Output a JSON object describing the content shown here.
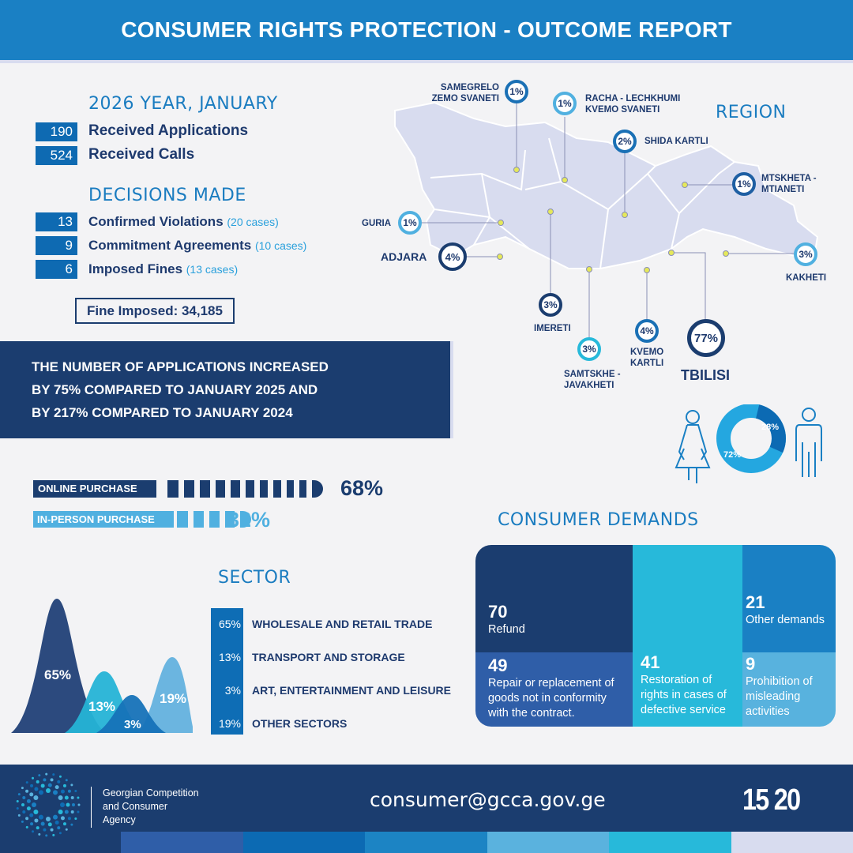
{
  "header": {
    "title": "CONSUMER RIGHTS PROTECTION - OUTCOME REPORT"
  },
  "period": {
    "title": "2026 YEAR, JANUARY",
    "stats": [
      {
        "value": "190",
        "label": "Received Applications"
      },
      {
        "value": "524",
        "label": "Received Calls"
      }
    ]
  },
  "decisions": {
    "title": "DECISIONS MADE",
    "items": [
      {
        "value": "13",
        "label": "Confirmed Violations",
        "note": "(20 cases)"
      },
      {
        "value": "9",
        "label": "Commitment Agreements",
        "note": "(10 cases)"
      },
      {
        "value": "6",
        "label": "Imposed Fines",
        "note": "(13  cases)"
      }
    ],
    "fine": "Fine Imposed: 34,185"
  },
  "banner": {
    "lines": [
      "THE NUMBER OF APPLICATIONS INCREASED",
      "BY 75% COMPARED TO JANUARY 2025 AND",
      "BY 217% COMPARED TO JANUARY 2024"
    ]
  },
  "region": {
    "title": "REGION",
    "items": [
      {
        "name": "SAMEGRELO ZEMO SVANETI",
        "value": "1%"
      },
      {
        "name": "RACHA - LECHKHUMI KVEMO SVANETI",
        "value": "1%"
      },
      {
        "name": "SHIDA KARTLI",
        "value": "2%"
      },
      {
        "name": "MTSKHETA - MTIANETI",
        "value": "1%"
      },
      {
        "name": "GURIA",
        "value": "1%"
      },
      {
        "name": "ADJARA",
        "value": "4%"
      },
      {
        "name": "KAKHETI",
        "value": "3%"
      },
      {
        "name": "IMERETI",
        "value": "3%"
      },
      {
        "name": "SAMTSKHE - JAVAKHETI",
        "value": "3%"
      },
      {
        "name": "KVEMO KARTLI",
        "value": "4%"
      },
      {
        "name": "TBILISI",
        "value": "77%"
      }
    ]
  },
  "gender": {
    "female": "72%",
    "male": "28%",
    "female_value": 72,
    "male_value": 28
  },
  "purchase": [
    {
      "label": "ONLINE PURCHASE",
      "value": "68%",
      "percent": 68
    },
    {
      "label": "IN-PERSON PURCHASE",
      "value": "32%",
      "percent": 32
    }
  ],
  "sector": {
    "title": "SECTOR",
    "items": [
      {
        "value": "65%",
        "label": "WHOLESALE AND RETAIL TRADE",
        "percent": 65
      },
      {
        "value": "13%",
        "label": "TRANSPORT AND STORAGE",
        "percent": 13
      },
      {
        "value": "3%",
        "label": "ART, ENTERTAINMENT AND LEISURE",
        "percent": 3
      },
      {
        "value": "19%",
        "label": "OTHER SECTORS",
        "percent": 19
      }
    ]
  },
  "demands": {
    "title": "CONSUMER DEMANDS",
    "items": [
      {
        "value": "70",
        "label": "Refund"
      },
      {
        "value": "49",
        "label": "Repair or replacement of goods not in conformity with the contract."
      },
      {
        "value": "41",
        "label": "Restoration of rights in cases of defective service"
      },
      {
        "value": "21",
        "label": "Other demands"
      },
      {
        "value": "9",
        "label": "Prohibition of misleading activities"
      }
    ]
  },
  "footer": {
    "org_line1": "Georgian Competition",
    "org_line2": "and Consumer",
    "org_line3": "Agency",
    "email": "consumer@gcca.gov.ge",
    "hotline": "15 20"
  },
  "colors": {
    "dark": "#1b3d6f",
    "primary": "#1a80c4",
    "light": "#50b0e0",
    "cyan": "#27b9da"
  }
}
